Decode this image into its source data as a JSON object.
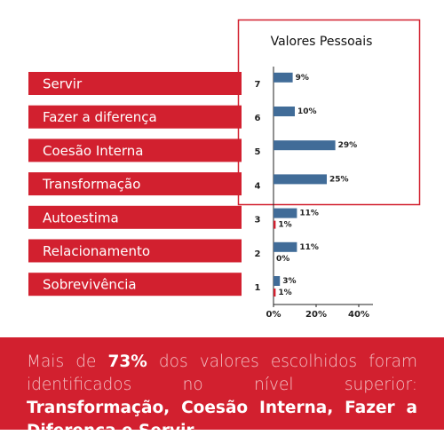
{
  "labels": [
    "Servir",
    "Fazer a diferença",
    "Coesão Interna",
    "Transformação",
    "Autoestima",
    "Relacionamento",
    "Sobrevivência"
  ],
  "chart_data": {
    "type": "bar",
    "orientation": "horizontal",
    "title": "Valores Pessoais",
    "categories": [
      "1",
      "2",
      "3",
      "4",
      "5",
      "6",
      "7"
    ],
    "series": [
      {
        "color": "#416c98",
        "values": [
          3,
          11,
          11,
          25,
          29,
          10,
          9
        ],
        "value_labels": [
          "3%",
          "11%",
          "11%",
          "25%",
          "29%",
          "10%",
          "9%"
        ]
      },
      {
        "color": "#d2202f",
        "values": [
          1,
          0,
          1,
          null,
          null,
          null,
          null
        ],
        "value_labels": [
          "1%",
          "0%",
          "1%",
          null,
          null,
          null,
          null
        ]
      }
    ],
    "xlim": [
      0,
      45
    ],
    "xticks": [
      {
        "value": 0,
        "label": "0%"
      },
      {
        "value": 20,
        "label": "20%"
      },
      {
        "value": 40,
        "label": "40%"
      }
    ]
  },
  "footer": {
    "parts": [
      "Mais de ",
      "73%",
      " dos valores escolhidos foram identificados no nível superior: ",
      "Transformação, Coesão Interna, Fazer a Diferença e Servir."
    ]
  }
}
